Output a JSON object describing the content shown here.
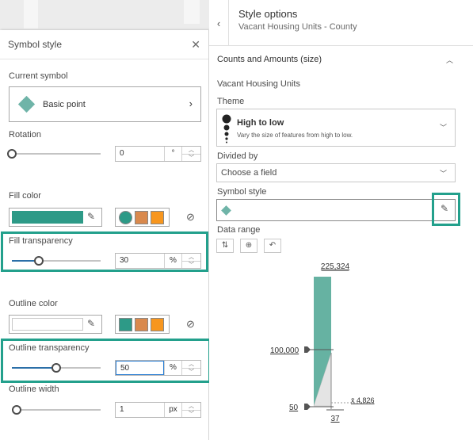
{
  "symbol_style_panel": {
    "title": "Symbol style",
    "close_icon": "close-icon",
    "current_symbol_label": "Current symbol",
    "current_symbol_name": "Basic point",
    "rotation_label": "Rotation",
    "rotation_value": "0",
    "rotation_unit": "°",
    "fill_color_label": "Fill color",
    "fill_color": "#2d9a87",
    "fill_transparency_label": "Fill transparency",
    "fill_transparency_value": "30",
    "fill_transparency_percent": 30,
    "fill_transparency_unit": "%",
    "outline_color_label": "Outline color",
    "outline_color": "#ffffff",
    "outline_transparency_label": "Outline transparency",
    "outline_transparency_value": "50",
    "outline_transparency_percent": 50,
    "outline_transparency_unit": "%",
    "outline_width_label": "Outline width",
    "outline_width_value": "1",
    "outline_width_unit": "px",
    "palette": [
      "#2d9a87",
      "#d9894d",
      "#f7961e"
    ]
  },
  "style_options": {
    "title": "Style options",
    "subtitle": "Vacant Housing Units - County",
    "section_title": "Counts and Amounts (size)",
    "field_label": "Vacant Housing Units",
    "theme_label": "Theme",
    "theme_title": "High to low",
    "theme_desc": "Vary the size of features from high to low.",
    "divided_by_label": "Divided by",
    "divided_by_placeholder": "Choose a field",
    "symbol_style_label": "Symbol style",
    "data_range_label": "Data range",
    "accent_color": "#23a08c"
  },
  "chart_data": {
    "type": "histogram-slider",
    "max_label": "225,324",
    "handle_high": "100,000",
    "handle_low": "50",
    "min_label": "37",
    "mean_label": "x̄ 4,826",
    "bar_color": "#66b2a2"
  }
}
